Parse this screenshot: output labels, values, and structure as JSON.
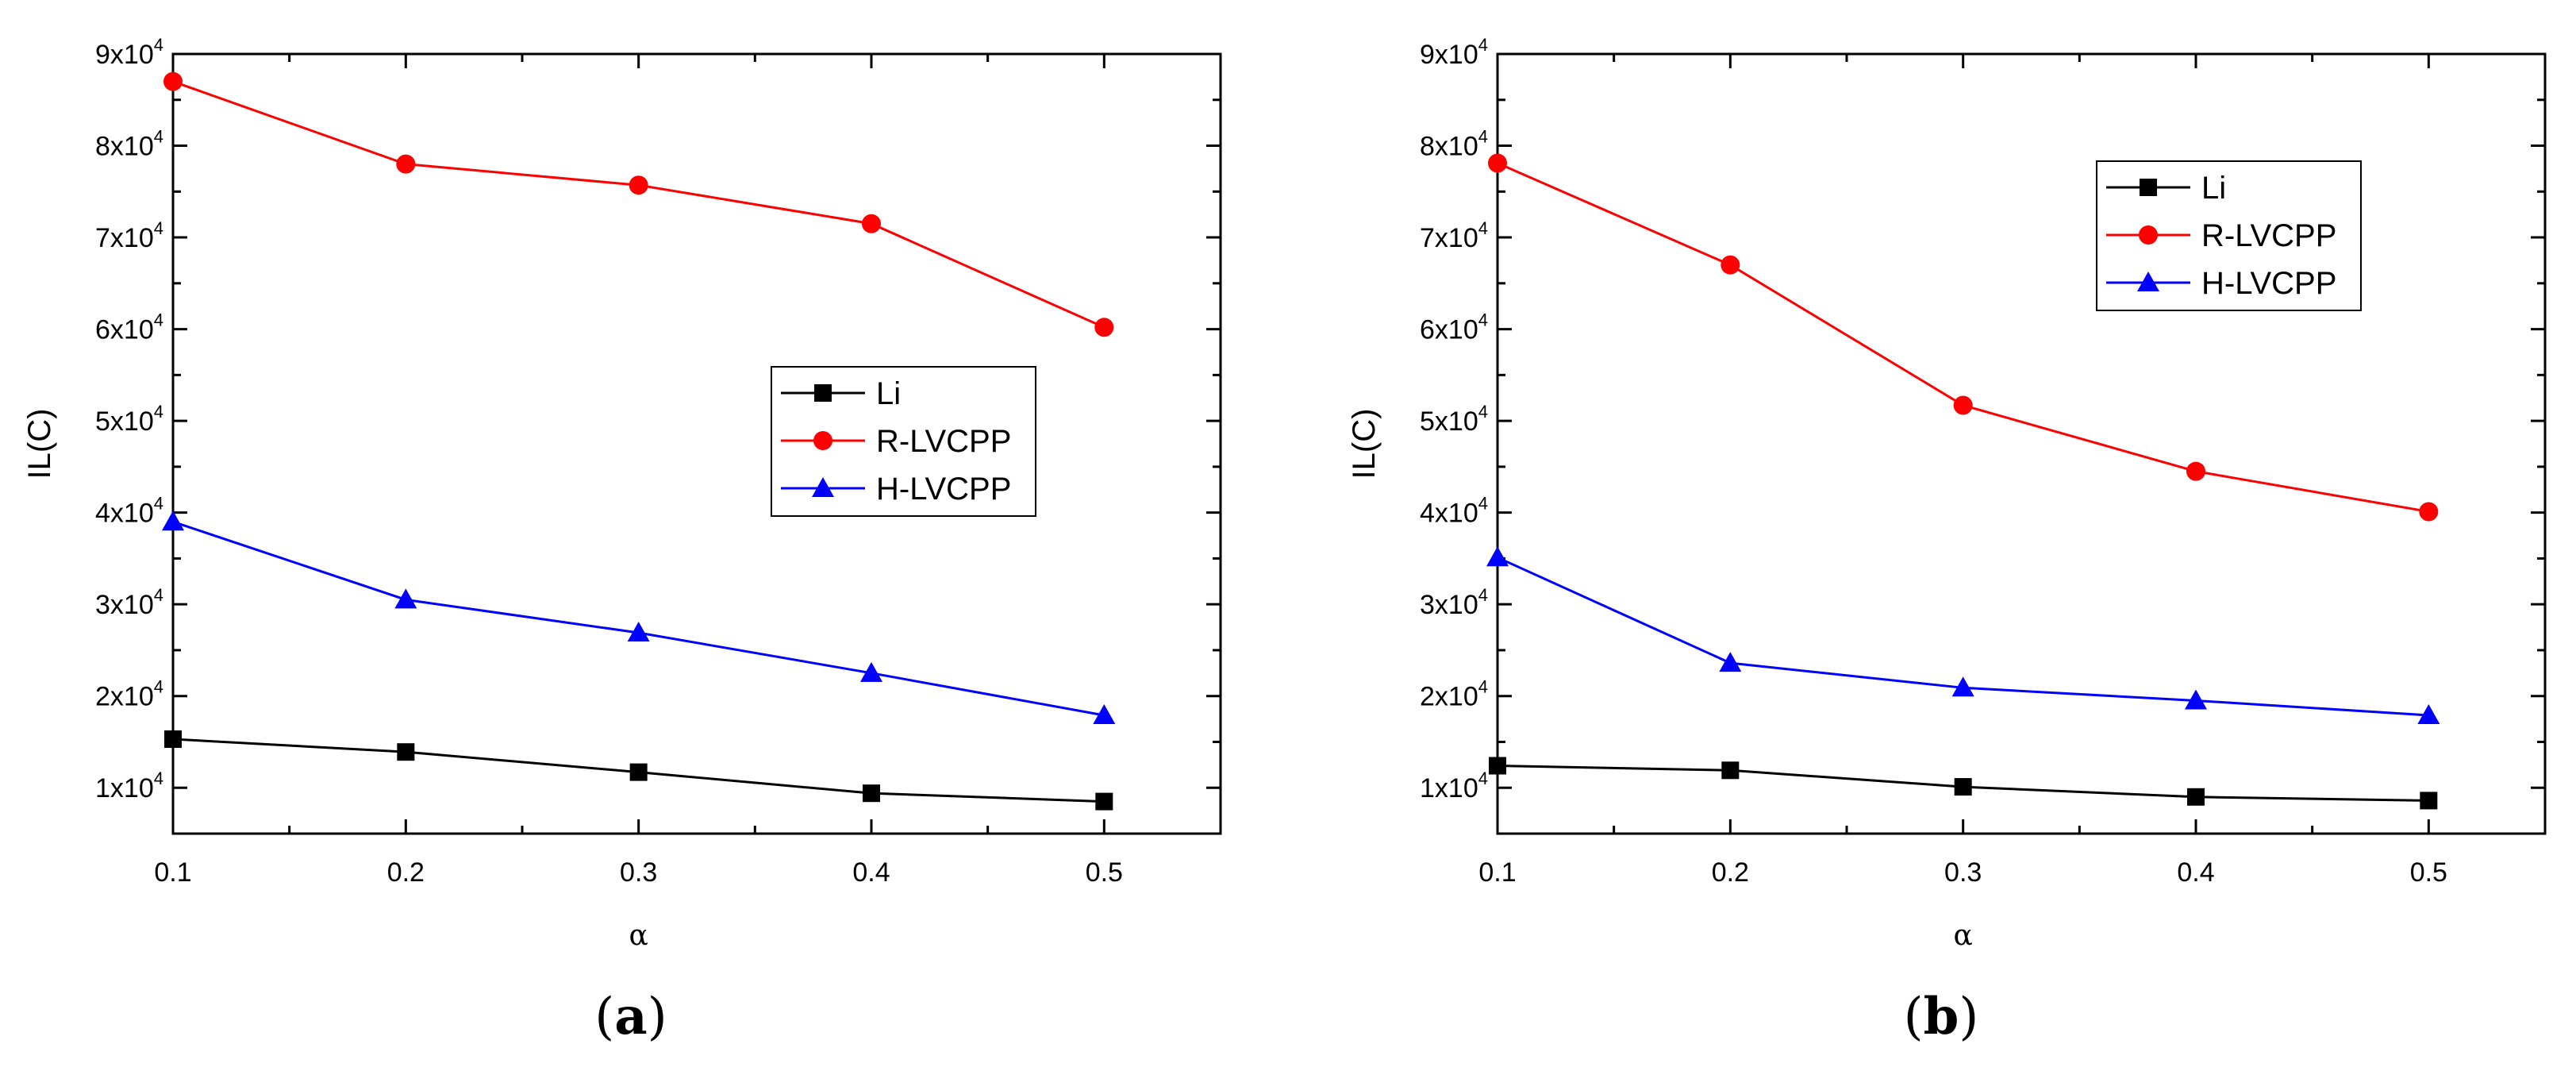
{
  "chart_data": [
    {
      "id": "a",
      "type": "line",
      "panel_label": {
        "open": "(",
        "letter": "a",
        "close": ")"
      },
      "xlabel": "α",
      "ylabel": "IL(C)",
      "x": [
        0.1,
        0.2,
        0.3,
        0.4,
        0.5
      ],
      "xlim": [
        0.1,
        0.55
      ],
      "ylim": [
        5000,
        90000
      ],
      "x_ticks": [
        "0.1",
        "0.2",
        "0.3",
        "0.4",
        "0.5"
      ],
      "y_ticks": [
        {
          "value": 10000,
          "mantissa": "1x10",
          "exponent": "4"
        },
        {
          "value": 20000,
          "mantissa": "2x10",
          "exponent": "4"
        },
        {
          "value": 30000,
          "mantissa": "3x10",
          "exponent": "4"
        },
        {
          "value": 40000,
          "mantissa": "4x10",
          "exponent": "4"
        },
        {
          "value": 50000,
          "mantissa": "5x10",
          "exponent": "4"
        },
        {
          "value": 60000,
          "mantissa": "6x10",
          "exponent": "4"
        },
        {
          "value": 70000,
          "mantissa": "7x10",
          "exponent": "4"
        },
        {
          "value": 80000,
          "mantissa": "8x10",
          "exponent": "4"
        },
        {
          "value": 90000,
          "mantissa": "9x10",
          "exponent": "4"
        }
      ],
      "legend_position": "center-right",
      "series": [
        {
          "name": "Li",
          "color": "#000000",
          "marker": "square",
          "values": [
            15300,
            13900,
            11700,
            9400,
            8500
          ]
        },
        {
          "name": "R-LVCPP",
          "color": "#ff0000",
          "marker": "circle",
          "values": [
            87000,
            78000,
            75700,
            71500,
            60200
          ]
        },
        {
          "name": "H-LVCPP",
          "color": "#0000ff",
          "marker": "triangle",
          "values": [
            39000,
            30500,
            26900,
            22500,
            17900
          ]
        }
      ]
    },
    {
      "id": "b",
      "type": "line",
      "panel_label": {
        "open": "(",
        "letter": "b",
        "close": ")"
      },
      "xlabel": "α",
      "ylabel": "IL(C)",
      "x": [
        0.1,
        0.2,
        0.3,
        0.4,
        0.5
      ],
      "xlim": [
        0.1,
        0.55
      ],
      "ylim": [
        5000,
        90000
      ],
      "x_ticks": [
        "0.1",
        "0.2",
        "0.3",
        "0.4",
        "0.5"
      ],
      "y_ticks": [
        {
          "value": 10000,
          "mantissa": "1x10",
          "exponent": "4"
        },
        {
          "value": 20000,
          "mantissa": "2x10",
          "exponent": "4"
        },
        {
          "value": 30000,
          "mantissa": "3x10",
          "exponent": "4"
        },
        {
          "value": 40000,
          "mantissa": "4x10",
          "exponent": "4"
        },
        {
          "value": 50000,
          "mantissa": "5x10",
          "exponent": "4"
        },
        {
          "value": 60000,
          "mantissa": "6x10",
          "exponent": "4"
        },
        {
          "value": 70000,
          "mantissa": "7x10",
          "exponent": "4"
        },
        {
          "value": 80000,
          "mantissa": "8x10",
          "exponent": "4"
        },
        {
          "value": 90000,
          "mantissa": "9x10",
          "exponent": "4"
        }
      ],
      "legend_position": "top-right",
      "series": [
        {
          "name": "Li",
          "color": "#000000",
          "marker": "square",
          "values": [
            12400,
            11900,
            10100,
            9000,
            8600
          ]
        },
        {
          "name": "R-LVCPP",
          "color": "#ff0000",
          "marker": "circle",
          "values": [
            78100,
            67000,
            51700,
            44500,
            40100
          ]
        },
        {
          "name": "H-LVCPP",
          "color": "#0000ff",
          "marker": "triangle",
          "values": [
            35100,
            23600,
            20900,
            19500,
            17900
          ]
        }
      ]
    }
  ]
}
